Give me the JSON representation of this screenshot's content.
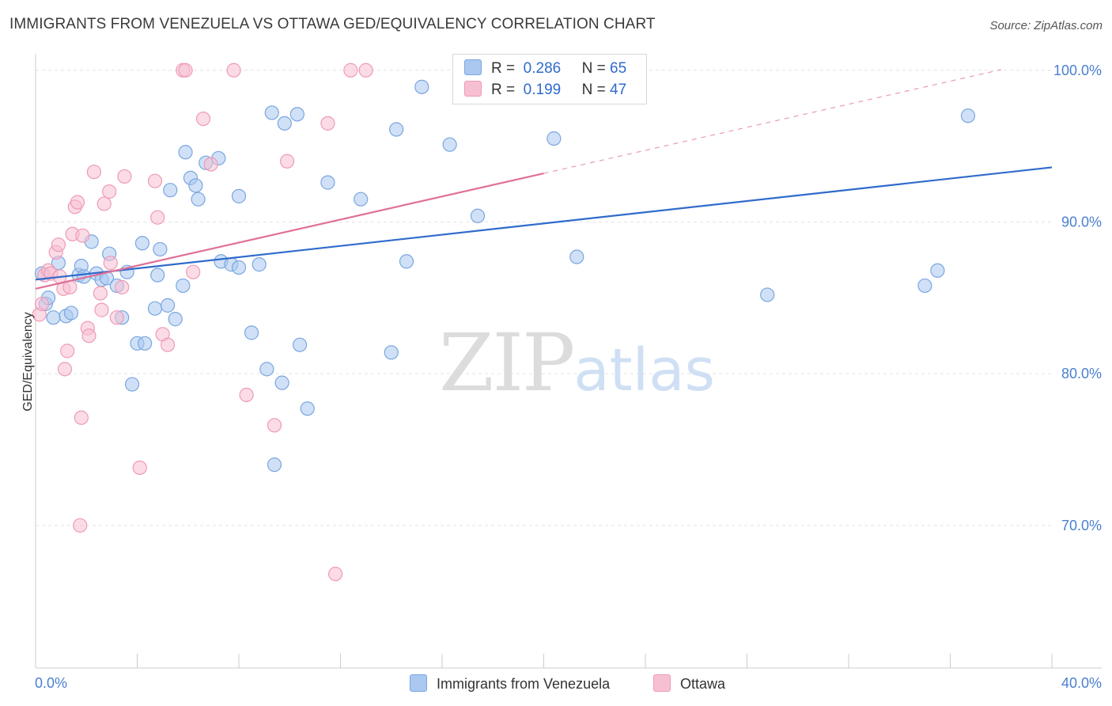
{
  "title": "IMMIGRANTS FROM VENEZUELA VS OTTAWA GED/EQUIVALENCY CORRELATION CHART",
  "source": "Source: ZipAtlas.com",
  "watermark": {
    "part1": "ZIP",
    "part2": "atlas"
  },
  "legend_top": [
    {
      "r_label": "R =",
      "r_value": "0.286",
      "n_label": "N =",
      "n_value": "65"
    },
    {
      "r_label": "R =",
      "r_value": "0.199",
      "n_label": "N =",
      "n_value": "47"
    }
  ],
  "legend_bottom": [
    {
      "label": "Immigrants from Venezuela"
    },
    {
      "label": "Ottawa"
    }
  ],
  "colors": {
    "blue_fill": "#aac8f0",
    "blue_stroke": "#7aa6e0",
    "blue_line": "#2f6bcc",
    "pink_fill": "#f7c0d2",
    "pink_stroke": "#ee9ab6",
    "pink_line": "#e07096",
    "axis_text": "#4a7fd0",
    "grid": "#e4e4e4"
  },
  "chart_data": {
    "type": "scatter",
    "title": "IMMIGRANTS FROM VENEZUELA VS OTTAWA GED/EQUIVALENCY CORRELATION CHART",
    "xlabel": "",
    "ylabel": "GED/Equivalency",
    "xlim": [
      0,
      40
    ],
    "ylim": [
      60.6,
      101.5
    ],
    "x_tick_labels": [
      {
        "value": 0,
        "label": "0.0%"
      },
      {
        "value": 40,
        "label": "40.0%"
      }
    ],
    "y_tick_labels": [
      {
        "value": 100,
        "label": "100.0%"
      },
      {
        "value": 90,
        "label": "90.0%"
      },
      {
        "value": 80,
        "label": "80.0%"
      },
      {
        "value": 70,
        "label": "70.0%"
      }
    ],
    "grid": true,
    "series": [
      {
        "name": "Immigrants from Venezuela",
        "trend": {
          "x0": 0,
          "y0": 86.2,
          "x1": 40,
          "y1": 93.6
        },
        "points": [
          [
            0.25,
            86.6
          ],
          [
            0.4,
            84.6
          ],
          [
            0.5,
            85.0
          ],
          [
            0.7,
            83.7
          ],
          [
            0.9,
            87.3
          ],
          [
            1.2,
            83.8
          ],
          [
            1.4,
            84.0
          ],
          [
            1.7,
            86.5
          ],
          [
            1.8,
            87.1
          ],
          [
            1.9,
            86.4
          ],
          [
            2.2,
            88.7
          ],
          [
            2.4,
            86.6
          ],
          [
            2.6,
            86.2
          ],
          [
            2.8,
            86.3
          ],
          [
            2.9,
            87.9
          ],
          [
            3.2,
            85.8
          ],
          [
            3.4,
            83.7
          ],
          [
            3.6,
            86.7
          ],
          [
            3.8,
            79.3
          ],
          [
            4.0,
            82.0
          ],
          [
            4.2,
            88.6
          ],
          [
            4.3,
            82.0
          ],
          [
            4.7,
            84.3
          ],
          [
            4.8,
            86.5
          ],
          [
            4.9,
            88.2
          ],
          [
            5.2,
            84.5
          ],
          [
            5.3,
            92.1
          ],
          [
            5.5,
            83.6
          ],
          [
            5.8,
            85.8
          ],
          [
            5.9,
            94.6
          ],
          [
            6.1,
            92.9
          ],
          [
            6.3,
            92.4
          ],
          [
            6.4,
            91.5
          ],
          [
            6.7,
            93.9
          ],
          [
            7.2,
            94.2
          ],
          [
            7.3,
            87.4
          ],
          [
            7.7,
            87.2
          ],
          [
            8.0,
            87.0
          ],
          [
            8.0,
            91.7
          ],
          [
            8.5,
            82.7
          ],
          [
            8.8,
            87.2
          ],
          [
            9.1,
            80.3
          ],
          [
            9.3,
            97.2
          ],
          [
            9.4,
            74.0
          ],
          [
            9.7,
            79.4
          ],
          [
            9.8,
            96.5
          ],
          [
            10.3,
            97.1
          ],
          [
            10.4,
            81.9
          ],
          [
            10.7,
            77.7
          ],
          [
            11.5,
            92.6
          ],
          [
            12.8,
            91.5
          ],
          [
            14.0,
            81.4
          ],
          [
            14.2,
            96.1
          ],
          [
            14.6,
            87.4
          ],
          [
            15.2,
            98.9
          ],
          [
            16.3,
            95.1
          ],
          [
            17.4,
            90.4
          ],
          [
            20.4,
            95.5
          ],
          [
            20.5,
            100.0
          ],
          [
            21.3,
            87.7
          ],
          [
            23.3,
            100.0
          ],
          [
            28.8,
            85.2
          ],
          [
            35.0,
            85.8
          ],
          [
            35.5,
            86.8
          ],
          [
            36.7,
            97.0
          ]
        ]
      },
      {
        "name": "Ottawa",
        "trend": {
          "x0": 0,
          "y0": 85.6,
          "x1": 20.0,
          "y1": 93.2
        },
        "points": [
          [
            0.15,
            83.9
          ],
          [
            0.25,
            84.6
          ],
          [
            0.35,
            86.5
          ],
          [
            0.5,
            86.8
          ],
          [
            0.6,
            86.6
          ],
          [
            0.8,
            88.0
          ],
          [
            0.9,
            88.5
          ],
          [
            0.95,
            86.4
          ],
          [
            1.1,
            85.6
          ],
          [
            1.15,
            80.3
          ],
          [
            1.25,
            81.5
          ],
          [
            1.35,
            85.7
          ],
          [
            1.45,
            89.2
          ],
          [
            1.55,
            91.0
          ],
          [
            1.65,
            91.3
          ],
          [
            1.75,
            70.0
          ],
          [
            1.8,
            77.1
          ],
          [
            1.85,
            89.1
          ],
          [
            2.05,
            83.0
          ],
          [
            2.1,
            82.5
          ],
          [
            2.3,
            93.3
          ],
          [
            2.55,
            85.3
          ],
          [
            2.6,
            84.2
          ],
          [
            2.7,
            91.2
          ],
          [
            2.9,
            92.0
          ],
          [
            2.95,
            87.3
          ],
          [
            3.2,
            83.7
          ],
          [
            3.4,
            85.7
          ],
          [
            3.5,
            93.0
          ],
          [
            4.1,
            73.8
          ],
          [
            4.7,
            92.7
          ],
          [
            4.8,
            90.3
          ],
          [
            5.0,
            82.6
          ],
          [
            5.2,
            81.9
          ],
          [
            5.8,
            100.0
          ],
          [
            5.9,
            100.0
          ],
          [
            6.2,
            86.7
          ],
          [
            6.6,
            96.8
          ],
          [
            6.9,
            93.8
          ],
          [
            7.8,
            100.0
          ],
          [
            8.3,
            78.6
          ],
          [
            9.4,
            76.6
          ],
          [
            9.9,
            94.0
          ],
          [
            11.5,
            96.5
          ],
          [
            11.8,
            66.8
          ],
          [
            12.4,
            100.0
          ],
          [
            13.0,
            100.0
          ]
        ]
      }
    ]
  }
}
